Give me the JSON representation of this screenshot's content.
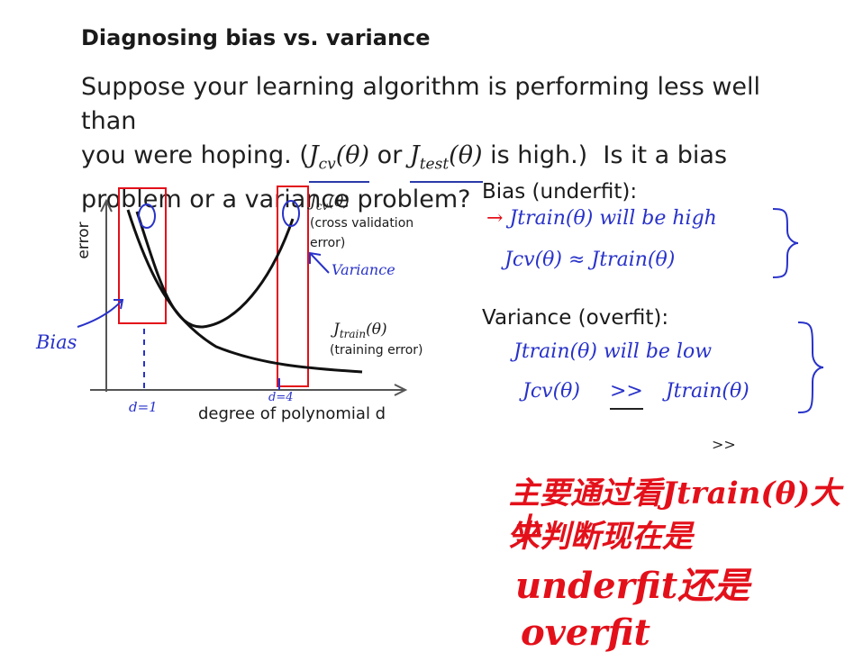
{
  "slide": {
    "title": "Diagnosing bias vs. variance",
    "body_line1": "Suppose your learning algorithm is performing less well than",
    "body_line2_pre": "you were hoping. (",
    "body_math_cv": "J",
    "body_math_cv_sub": "cv",
    "body_math_cv_arg": "(θ)",
    "body_or": " or ",
    "body_math_test": "J",
    "body_math_test_sub": "test",
    "body_math_test_arg": "(θ)",
    "body_line2_post": " is high.)  Is it a bias",
    "body_line3": "problem or a variance problem?"
  },
  "chart_data": {
    "type": "line",
    "xlabel": "degree of polynomial d",
    "ylabel": "error",
    "series": [
      {
        "name": "J_cv(θ) (cross validation error)",
        "label_math": "J",
        "label_sub": "cv",
        "label_arg": "(θ)",
        "label_desc_1": "(cross validation",
        "label_desc_2": "error)"
      },
      {
        "name": "J_train(θ) (training error)",
        "label_math": "J",
        "label_sub": "train",
        "label_arg": "(θ)",
        "label_desc": "(training error)"
      }
    ],
    "annotations": {
      "bias": "Bias",
      "variance": "Variance",
      "d1": "d=1",
      "d4": "d=4"
    }
  },
  "right_panel": {
    "bias_heading": "Bias (underfit):",
    "bias_line1": "Jtrain(θ) will be high",
    "bias_line2": "Jcv(θ) ≈ Jtrain(θ)",
    "variance_heading": "Variance (overfit):",
    "variance_line1": "Jtrain(θ) will be low",
    "variance_line2_left": "Jcv(θ)",
    "variance_line2_op": ">>",
    "variance_line2_right": "Jtrain(θ)",
    "small_mark": ">>"
  },
  "note": {
    "line1": "主要通过看Jtrain(θ)大小",
    "line2": "来判断现在是",
    "line3": "underfit还是",
    "line4": "overfit"
  },
  "colors": {
    "red": "#e3101a",
    "blue_ink": "#2832c9",
    "curve": "#111111",
    "axis": "#555555"
  }
}
